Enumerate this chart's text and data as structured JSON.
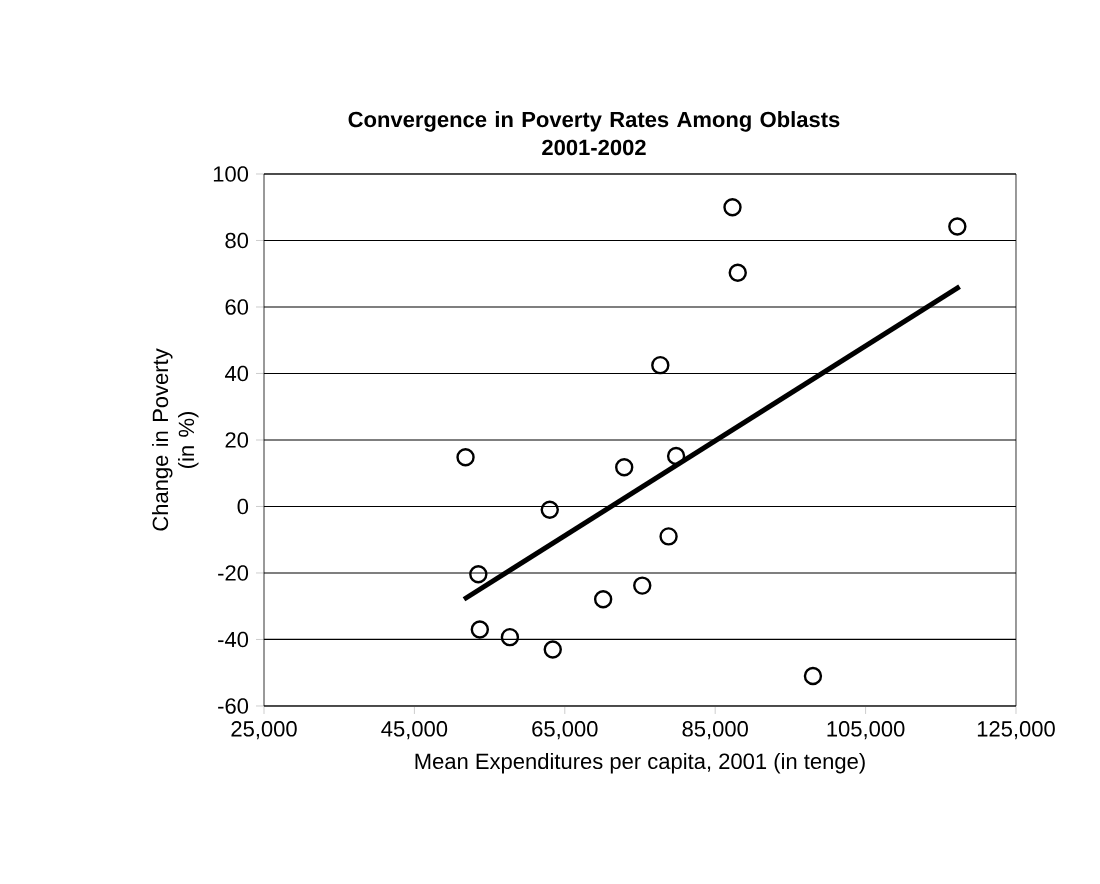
{
  "chart_data": {
    "type": "scatter",
    "title": "Convergence in Poverty Rates Among Oblasts\n2001-2002",
    "xlabel": "Mean Expenditures per capita, 2001 (in tenge)",
    "ylabel": "Change in Poverty\n(in %)",
    "xlim": [
      25000,
      125000
    ],
    "xticks": [
      {
        "value": 25000,
        "label": "25,000"
      },
      {
        "value": 45000,
        "label": "45,000"
      },
      {
        "value": 65000,
        "label": "65,000"
      },
      {
        "value": 85000,
        "label": "85,000"
      },
      {
        "value": 105000,
        "label": "105,000"
      },
      {
        "value": 125000,
        "label": "125,000"
      }
    ],
    "ylim": [
      -60,
      100
    ],
    "yticks": [
      -60,
      -40,
      -20,
      0,
      20,
      40,
      60,
      80,
      100
    ],
    "grid": "y",
    "series": [
      {
        "marker": "circle",
        "color": "#000000",
        "x": [
          51800,
          53500,
          53700,
          57700,
          63000,
          63400,
          70100,
          72900,
          75300,
          77700,
          78800,
          79800,
          87300,
          88000,
          98000,
          117200
        ],
        "values": [
          14.8,
          -20.4,
          -37,
          -39.3,
          -1,
          -43,
          -27.9,
          11.8,
          -23.8,
          42.5,
          -9,
          15.2,
          90,
          70.3,
          -51,
          84.2
        ]
      },
      {
        "type": "line",
        "color": "#000000",
        "x": [
          51600,
          117500
        ],
        "values": [
          -27.9,
          66.1
        ]
      }
    ]
  }
}
